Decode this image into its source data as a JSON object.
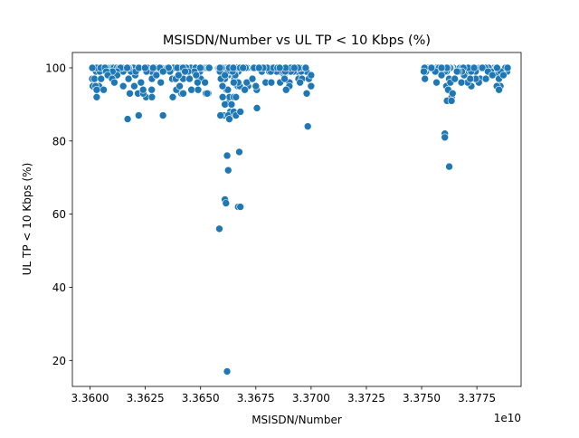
{
  "chart_data": {
    "type": "scatter",
    "title": "MSISDN/Number vs UL TP < 10 Kbps (%)",
    "xlabel": "MSISDN/Number",
    "ylabel": "UL TP < 10 Kbps (%)",
    "x_offset_text": "1e10",
    "x_scale_factor": 10000000000,
    "xlim": [
      33592000000.0,
      33795000000.0
    ],
    "ylim": [
      12.9,
      104.2
    ],
    "xticks": [
      33600000000.0,
      33625000000.0,
      33650000000.0,
      33675000000.0,
      33700000000.0,
      33725000000.0,
      33750000000.0,
      33775000000.0
    ],
    "xtick_labels": [
      "3.3600",
      "3.3625",
      "3.3650",
      "3.3675",
      "3.3700",
      "3.3725",
      "3.3750",
      "3.3775"
    ],
    "yticks": [
      20,
      40,
      60,
      80,
      100
    ],
    "ytick_labels": [
      "20",
      "40",
      "60",
      "80",
      "100"
    ],
    "grid": false,
    "marker_color": "#1f77b4",
    "marker_edge_color": "#ffffff",
    "clusters": [
      {
        "x_from": 33601000000.0,
        "x_to": 33654000000.0,
        "y_max": 100,
        "y_min": 92,
        "n": 150,
        "seed": 1
      },
      {
        "x_from": 33658000000.0,
        "x_to": 33668000000.0,
        "y_max": 100,
        "y_min": 86,
        "n": 140,
        "seed": 2
      },
      {
        "x_from": 33669000000.0,
        "x_to": 33698000000.0,
        "y_max": 100,
        "y_min": 93,
        "n": 70,
        "seed": 3
      },
      {
        "x_from": 33751000000.0,
        "x_to": 33765000000.0,
        "y_max": 100,
        "y_min": 91,
        "n": 40,
        "seed": 4
      },
      {
        "x_from": 33765000000.0,
        "x_to": 33789000000.0,
        "y_max": 100,
        "y_min": 94,
        "n": 50,
        "seed": 5
      }
    ],
    "points": [
      {
        "x": 33601000000.0,
        "y": 97
      },
      {
        "x": 33602000000.0,
        "y": 97
      },
      {
        "x": 33602500000.0,
        "y": 95
      },
      {
        "x": 33603000000.0,
        "y": 94
      },
      {
        "x": 33603000000.0,
        "y": 92
      },
      {
        "x": 33605000000.0,
        "y": 97
      },
      {
        "x": 33608000000.0,
        "y": 98
      },
      {
        "x": 33610000000.0,
        "y": 97
      },
      {
        "x": 33611000000.0,
        "y": 96
      },
      {
        "x": 33615000000.0,
        "y": 95
      },
      {
        "x": 33617000000.0,
        "y": 86
      },
      {
        "x": 33618000000.0,
        "y": 93
      },
      {
        "x": 33620000000.0,
        "y": 95
      },
      {
        "x": 33622000000.0,
        "y": 87
      },
      {
        "x": 33624000000.0,
        "y": 94
      },
      {
        "x": 33628000000.0,
        "y": 97
      },
      {
        "x": 33630000000.0,
        "y": 98
      },
      {
        "x": 33632000000.0,
        "y": 96
      },
      {
        "x": 33633000000.0,
        "y": 87
      },
      {
        "x": 33640000000.0,
        "y": 98
      },
      {
        "x": 33643000000.0,
        "y": 99
      },
      {
        "x": 33645000000.0,
        "y": 97
      },
      {
        "x": 33648000000.0,
        "y": 98
      },
      {
        "x": 33652000000.0,
        "y": 96
      },
      {
        "x": 33653000000.0,
        "y": 93
      },
      {
        "x": 33658500000.0,
        "y": 56
      },
      {
        "x": 33659000000.0,
        "y": 87
      },
      {
        "x": 33660000000.0,
        "y": 92
      },
      {
        "x": 33661000000.0,
        "y": 64
      },
      {
        "x": 33661500000.0,
        "y": 63
      },
      {
        "x": 33662000000.0,
        "y": 76
      },
      {
        "x": 33662500000.0,
        "y": 72
      },
      {
        "x": 33662000000.0,
        "y": 17
      },
      {
        "x": 33663000000.0,
        "y": 86
      },
      {
        "x": 33664000000.0,
        "y": 90
      },
      {
        "x": 33665000000.0,
        "y": 88
      },
      {
        "x": 33666000000.0,
        "y": 87
      },
      {
        "x": 33667000000.0,
        "y": 62
      },
      {
        "x": 33668000000.0,
        "y": 62
      },
      {
        "x": 33667500000.0,
        "y": 77
      },
      {
        "x": 33666000000.0,
        "y": 92
      },
      {
        "x": 33668000000.0,
        "y": 88
      },
      {
        "x": 33670000000.0,
        "y": 94
      },
      {
        "x": 33665000000.0,
        "y": 96
      },
      {
        "x": 33661000000.0,
        "y": 98
      },
      {
        "x": 33675500000.0,
        "y": 89
      },
      {
        "x": 33682000000.0,
        "y": 96
      },
      {
        "x": 33686000000.0,
        "y": 96
      },
      {
        "x": 33688000000.0,
        "y": 97
      },
      {
        "x": 33695000000.0,
        "y": 96
      },
      {
        "x": 33698000000.0,
        "y": 93
      },
      {
        "x": 33698500000.0,
        "y": 84
      },
      {
        "x": 33699000000.0,
        "y": 97
      },
      {
        "x": 33700000000.0,
        "y": 95
      },
      {
        "x": 33700000000.0,
        "y": 98
      },
      {
        "x": 33751000000.0,
        "y": 99
      },
      {
        "x": 33751500000.0,
        "y": 97
      },
      {
        "x": 33759000000.0,
        "y": 98
      },
      {
        "x": 33760500000.0,
        "y": 82
      },
      {
        "x": 33760500000.0,
        "y": 81
      },
      {
        "x": 33761500000.0,
        "y": 91
      },
      {
        "x": 33762000000.0,
        "y": 94
      },
      {
        "x": 33762500000.0,
        "y": 73
      },
      {
        "x": 33763000000.0,
        "y": 96
      },
      {
        "x": 33763500000.0,
        "y": 91
      },
      {
        "x": 33764000000.0,
        "y": 93
      },
      {
        "x": 33765000000.0,
        "y": 97
      },
      {
        "x": 33766000000.0,
        "y": 99
      },
      {
        "x": 33768000000.0,
        "y": 96
      },
      {
        "x": 33772000000.0,
        "y": 97
      },
      {
        "x": 33780000000.0,
        "y": 99
      },
      {
        "x": 33782000000.0,
        "y": 98
      },
      {
        "x": 33784000000.0,
        "y": 95
      },
      {
        "x": 33785000000.0,
        "y": 94
      },
      {
        "x": 33785000000.0,
        "y": 97
      },
      {
        "x": 33787000000.0,
        "y": 98
      }
    ]
  }
}
